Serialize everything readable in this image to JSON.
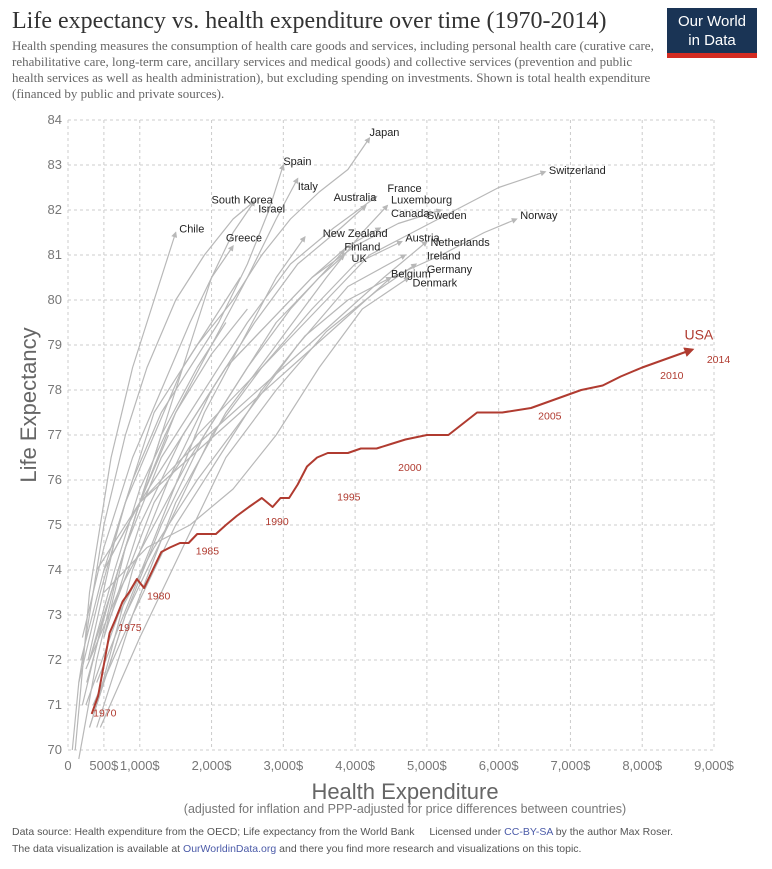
{
  "header": {
    "title": "Life expectancy vs. health expenditure over time (1970-2014)",
    "subtitle": "Health spending measures the consumption of health care goods and services, including personal health care (curative care, rehabilitative care, long-term care, ancillary services and medical goods) and collective services (prevention and public health services as well as health administration), but excluding spending on investments. Shown is total health expenditure (financed by public and private sources).",
    "logo_line1": "Our World",
    "logo_line2": "in Data"
  },
  "footer": {
    "source_text": "Data source: Health expenditure from the OECD; Life expectancy from the World Bank",
    "license_prefix": "Licensed under",
    "license_link": "CC-BY-SA",
    "license_suffix": "by the author Max Roser.",
    "line2_prefix": "The data visualization is available at",
    "site_link": "OurWorldinData.org",
    "line2_suffix": "and there you find more research and visualizations on this topic."
  },
  "colors": {
    "usa": "#b03b30",
    "other": "#b8b8b8",
    "grid": "#cccccc",
    "logo_bg": "#1a3455",
    "logo_bar": "#d42b21"
  },
  "chart_data": {
    "type": "line",
    "xlabel": "Health Expenditure",
    "xlabel_sub": "(adjusted for inflation and PPP-adjusted for price differences between countries)",
    "ylabel": "Life Expectancy",
    "xlim": [
      0,
      9000
    ],
    "ylim": [
      70,
      84
    ],
    "grid": true,
    "x_ticks": [
      0,
      500,
      1000,
      2000,
      3000,
      4000,
      5000,
      6000,
      7000,
      8000,
      9000
    ],
    "x_tick_labels": [
      "0",
      "500$",
      "1,000$",
      "2,000$",
      "3,000$",
      "4,000$",
      "5,000$",
      "6,000$",
      "7,000$",
      "8,000$",
      "9,000$"
    ],
    "y_ticks": [
      70,
      71,
      72,
      73,
      74,
      75,
      76,
      77,
      78,
      79,
      80,
      81,
      82,
      83,
      84
    ],
    "y_tick_labels": [
      "70",
      "71",
      "72",
      "73",
      "74",
      "75",
      "76",
      "77",
      "78",
      "79",
      "80",
      "81",
      "82",
      "83",
      "84"
    ],
    "highlight": {
      "name": "USA",
      "x": [
        330,
        420,
        500,
        580,
        660,
        760,
        850,
        960,
        1060,
        1180,
        1300,
        1420,
        1560,
        1680,
        1800,
        1940,
        2060,
        2200,
        2350,
        2520,
        2700,
        2850,
        2960,
        3080,
        3200,
        3330,
        3470,
        3620,
        3780,
        3900,
        4080,
        4300,
        4500,
        4700,
        5000,
        5300,
        5700,
        6050,
        6450,
        6800,
        7150,
        7450,
        7700,
        8000,
        8350,
        8700
      ],
      "y": [
        70.8,
        71.2,
        71.9,
        72.6,
        72.9,
        73.3,
        73.5,
        73.8,
        73.6,
        74.0,
        74.4,
        74.5,
        74.6,
        74.6,
        74.8,
        74.8,
        74.8,
        75.0,
        75.2,
        75.4,
        75.6,
        75.4,
        75.6,
        75.6,
        75.9,
        76.3,
        76.5,
        76.6,
        76.6,
        76.6,
        76.7,
        76.7,
        76.8,
        76.9,
        77.0,
        77.0,
        77.5,
        77.5,
        77.6,
        77.8,
        78.0,
        78.1,
        78.3,
        78.5,
        78.7,
        78.9
      ],
      "year_labels": [
        {
          "year": "1970",
          "x": 350,
          "y": 70.75
        },
        {
          "year": "1975",
          "x": 700,
          "y": 72.65
        },
        {
          "year": "1980",
          "x": 1100,
          "y": 73.35
        },
        {
          "year": "1985",
          "x": 1780,
          "y": 74.35
        },
        {
          "year": "1990",
          "x": 2750,
          "y": 75.0
        },
        {
          "year": "1995",
          "x": 3750,
          "y": 75.55
        },
        {
          "year": "2000",
          "x": 4600,
          "y": 76.2
        },
        {
          "year": "2005",
          "x": 6550,
          "y": 77.35
        },
        {
          "year": "2010",
          "x": 8250,
          "y": 78.25
        },
        {
          "year": "2014",
          "x": 8900,
          "y": 78.6
        }
      ]
    },
    "series": [
      {
        "name": "Japan",
        "x": [
          280,
          700,
          1200,
          1800,
          2300,
          2700,
          3100,
          3500,
          3900,
          4200
        ],
        "y": [
          72.0,
          75.0,
          77.5,
          79.0,
          80.0,
          81.0,
          81.8,
          82.4,
          82.9,
          83.6
        ]
      },
      {
        "name": "Spain",
        "x": [
          180,
          500,
          900,
          1300,
          1700,
          2100,
          2500,
          2800,
          3000
        ],
        "y": [
          72.0,
          74.0,
          76.0,
          77.5,
          78.5,
          79.5,
          80.8,
          82.0,
          83.0
        ]
      },
      {
        "name": "Italy",
        "x": [
          260,
          600,
          1000,
          1500,
          2000,
          2500,
          2900,
          3200
        ],
        "y": [
          71.5,
          73.5,
          75.5,
          77.5,
          79.0,
          80.5,
          81.8,
          82.7
        ]
      },
      {
        "name": "Switzerland",
        "x": [
          600,
          1200,
          1800,
          2400,
          3000,
          3600,
          4200,
          4800,
          5400,
          6000,
          6650
        ],
        "y": [
          73.0,
          75.5,
          77.0,
          78.0,
          79.0,
          80.0,
          81.0,
          81.5,
          82.0,
          82.5,
          82.85
        ]
      },
      {
        "name": "South Korea",
        "x": [
          60,
          150,
          300,
          500,
          800,
          1100,
          1500,
          1900,
          2300,
          2600
        ],
        "y": [
          70.0,
          71.5,
          73.0,
          75.0,
          77.0,
          78.5,
          80.0,
          81.0,
          81.8,
          82.2
        ]
      },
      {
        "name": "Israel",
        "x": [
          500,
          800,
          1100,
          1400,
          1700,
          2000,
          2300,
          2600
        ],
        "y": [
          72.5,
          74.5,
          76.0,
          77.5,
          79.0,
          80.5,
          81.5,
          82.2
        ]
      },
      {
        "name": "Chile",
        "x": [
          100,
          300,
          600,
          900,
          1200,
          1500
        ],
        "y": [
          70.0,
          73.5,
          76.5,
          78.5,
          80.0,
          81.5
        ]
      },
      {
        "name": "Greece",
        "x": [
          200,
          500,
          900,
          1300,
          1700,
          2000,
          2300
        ],
        "y": [
          72.5,
          74.5,
          76.5,
          78.0,
          79.5,
          80.5,
          81.2
        ]
      },
      {
        "name": "Australia",
        "x": [
          400,
          900,
          1400,
          2000,
          2600,
          3200,
          3800,
          4150
        ],
        "y": [
          71.0,
          74.0,
          76.0,
          78.0,
          79.5,
          80.8,
          81.6,
          82.1
        ]
      },
      {
        "name": "France",
        "x": [
          300,
          800,
          1300,
          1900,
          2500,
          3100,
          3700,
          4300
        ],
        "y": [
          72.0,
          74.5,
          76.5,
          78.0,
          79.5,
          80.8,
          81.6,
          82.3
        ]
      },
      {
        "name": "Luxembourg",
        "x": [
          400,
          900,
          1500,
          2200,
          2900,
          3600,
          4100,
          4450
        ],
        "y": [
          70.5,
          73.0,
          75.5,
          77.5,
          79.0,
          80.5,
          81.5,
          82.1
        ]
      },
      {
        "name": "Canada",
        "x": [
          500,
          1000,
          1600,
          2200,
          2800,
          3400,
          3900,
          4350
        ],
        "y": [
          72.5,
          75.0,
          77.0,
          78.5,
          79.5,
          80.5,
          81.2,
          81.6
        ]
      },
      {
        "name": "Sweden",
        "x": [
          500,
          1000,
          1600,
          2200,
          2800,
          3400,
          4000,
          4600,
          5200
        ],
        "y": [
          74.0,
          75.5,
          77.0,
          78.5,
          79.5,
          80.5,
          81.2,
          81.7,
          82.0
        ]
      },
      {
        "name": "Norway",
        "x": [
          400,
          1000,
          1700,
          2400,
          3100,
          3800,
          4500,
          5200,
          5800,
          6250
        ],
        "y": [
          74.0,
          75.5,
          76.5,
          77.5,
          78.5,
          79.5,
          80.5,
          81.0,
          81.5,
          81.8
        ]
      },
      {
        "name": "New Zealand",
        "x": [
          400,
          900,
          1400,
          1900,
          2400,
          2900,
          3300
        ],
        "y": [
          71.5,
          73.5,
          75.5,
          77.5,
          79.0,
          80.5,
          81.4
        ]
      },
      {
        "name": "Finland",
        "x": [
          300,
          800,
          1300,
          1900,
          2500,
          3100,
          3500,
          3850
        ],
        "y": [
          70.5,
          73.0,
          75.0,
          77.0,
          78.5,
          79.8,
          80.5,
          81.1
        ]
      },
      {
        "name": "UK",
        "x": [
          250,
          700,
          1200,
          1700,
          2300,
          2900,
          3500,
          3850
        ],
        "y": [
          71.8,
          73.5,
          75.0,
          76.5,
          78.0,
          79.5,
          80.5,
          81.0
        ]
      },
      {
        "name": "Austria",
        "x": [
          300,
          800,
          1400,
          2000,
          2700,
          3400,
          4000,
          4650
        ],
        "y": [
          70.5,
          73.0,
          75.0,
          77.0,
          78.5,
          79.8,
          80.8,
          81.3
        ]
      },
      {
        "name": "Netherlands",
        "x": [
          500,
          1000,
          1600,
          2300,
          3000,
          3700,
          4400,
          5000
        ],
        "y": [
          74.0,
          75.5,
          76.5,
          77.5,
          78.5,
          79.5,
          80.5,
          81.3
        ]
      },
      {
        "name": "Ireland",
        "x": [
          250,
          700,
          1200,
          1800,
          2500,
          3200,
          3900,
          4700
        ],
        "y": [
          71.0,
          73.0,
          74.5,
          76.0,
          77.5,
          79.0,
          80.3,
          81.0
        ]
      },
      {
        "name": "Germany",
        "x": [
          450,
          1000,
          1600,
          2200,
          2900,
          3600,
          4300,
          4850
        ],
        "y": [
          70.5,
          72.5,
          74.5,
          76.5,
          78.0,
          79.3,
          80.2,
          80.8
        ]
      },
      {
        "name": "Belgium",
        "x": [
          350,
          900,
          1500,
          2100,
          2700,
          3300,
          3900,
          4500
        ],
        "y": [
          71.0,
          73.0,
          75.0,
          76.5,
          78.0,
          79.2,
          80.0,
          80.5
        ]
      },
      {
        "name": "Denmark",
        "x": [
          500,
          1100,
          1700,
          2300,
          2900,
          3500,
          4100,
          4750
        ],
        "y": [
          73.5,
          74.5,
          75.0,
          75.8,
          77.0,
          78.5,
          79.8,
          80.5
        ]
      },
      {
        "name": "",
        "x": [
          150,
          400,
          700,
          1000,
          1400
        ],
        "y": [
          69.8,
          72.0,
          74.0,
          75.5,
          77.0
        ]
      },
      {
        "name": "",
        "x": [
          200,
          500,
          900,
          1300,
          1800,
          2200
        ],
        "y": [
          71.0,
          73.0,
          75.0,
          77.0,
          78.5,
          79.5
        ]
      },
      {
        "name": "",
        "x": [
          150,
          450,
          800,
          1200,
          1600,
          2000,
          2400
        ],
        "y": [
          71.5,
          73.5,
          75.5,
          77.0,
          78.5,
          79.5,
          80.5
        ]
      },
      {
        "name": "",
        "x": [
          300,
          650,
          1000,
          1500,
          2000,
          2500
        ],
        "y": [
          72.0,
          74.0,
          75.8,
          77.5,
          78.8,
          79.8
        ]
      }
    ],
    "country_labels": [
      {
        "text": "Japan",
        "x": 4200,
        "y": 83.65
      },
      {
        "text": "Spain",
        "x": 3000,
        "y": 83.0
      },
      {
        "text": "Italy",
        "x": 3200,
        "y": 82.45
      },
      {
        "text": "Switzerland",
        "x": 6700,
        "y": 82.8
      },
      {
        "text": "South Korea",
        "x": 2000,
        "y": 82.15
      },
      {
        "text": "Israel",
        "x": 2650,
        "y": 81.95
      },
      {
        "text": "Chile",
        "x": 1550,
        "y": 81.5
      },
      {
        "text": "Greece",
        "x": 2200,
        "y": 81.3
      },
      {
        "text": "Australia",
        "x": 3700,
        "y": 82.2
      },
      {
        "text": "France",
        "x": 4450,
        "y": 82.4
      },
      {
        "text": "Luxembourg",
        "x": 4500,
        "y": 82.15
      },
      {
        "text": "Canada",
        "x": 4500,
        "y": 81.85
      },
      {
        "text": "Sweden",
        "x": 5000,
        "y": 81.8
      },
      {
        "text": "Norway",
        "x": 6300,
        "y": 81.8
      },
      {
        "text": "New Zealand",
        "x": 3550,
        "y": 81.4
      },
      {
        "text": "Finland",
        "x": 3850,
        "y": 81.1
      },
      {
        "text": "UK",
        "x": 3950,
        "y": 80.85
      },
      {
        "text": "Austria",
        "x": 4700,
        "y": 81.3
      },
      {
        "text": "Netherlands",
        "x": 5050,
        "y": 81.2
      },
      {
        "text": "Ireland",
        "x": 5000,
        "y": 80.9
      },
      {
        "text": "Germany",
        "x": 5000,
        "y": 80.6
      },
      {
        "text": "Belgium",
        "x": 4500,
        "y": 80.5
      },
      {
        "text": "Denmark",
        "x": 4800,
        "y": 80.3
      }
    ]
  }
}
